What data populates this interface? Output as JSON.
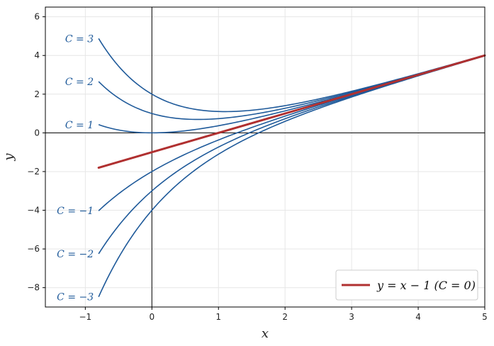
{
  "chart_data": {
    "type": "line",
    "xlabel": "x",
    "ylabel": "y",
    "xlim": [
      -1.6,
      5
    ],
    "ylim": [
      -9,
      6.5
    ],
    "x_ticks": [
      -1,
      0,
      1,
      2,
      3,
      4,
      5
    ],
    "y_ticks": [
      -8,
      -6,
      -4,
      -2,
      0,
      2,
      4,
      6
    ],
    "grid": true,
    "legend_position": "bottom-right",
    "x_range": [
      -0.8,
      5
    ],
    "colors": {
      "family": "#1f5a9a",
      "special": "#b03030",
      "axis": "#000000",
      "grid": "#e6e6e6"
    },
    "family_series": [
      {
        "C": 3,
        "label": "C = 3",
        "values": [
          4.93,
          1.98,
          1.12,
          1.5,
          2.15,
          3.05,
          4.02
        ]
      },
      {
        "C": 2,
        "label": "C = 2",
        "values": [
          2.65,
          1.0,
          0.74,
          1.27,
          2.1,
          3.04,
          4.01
        ]
      },
      {
        "C": 1,
        "label": "C = 1",
        "values": [
          0.43,
          0.0,
          0.37,
          1.14,
          2.05,
          3.02,
          4.01
        ]
      },
      {
        "C": -1,
        "label": "C = −1",
        "values": [
          -4.03,
          -2.0,
          -0.37,
          0.86,
          1.95,
          2.98,
          3.99
        ]
      },
      {
        "C": -2,
        "label": "C = −2",
        "values": [
          -6.25,
          -3.0,
          -0.74,
          0.73,
          1.9,
          2.96,
          3.99
        ]
      },
      {
        "C": -3,
        "label": "C = −3",
        "values": [
          -8.48,
          -4.0,
          -1.1,
          0.59,
          1.85,
          2.95,
          3.98
        ]
      }
    ],
    "special_series": {
      "name": "y = x − 1  (C = 0)",
      "x": [
        -0.8,
        5
      ],
      "values": [
        -1.8,
        4.0
      ]
    }
  }
}
